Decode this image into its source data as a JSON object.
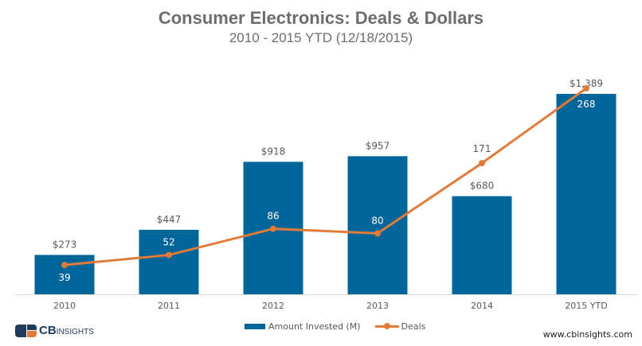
{
  "chart_data": {
    "type": "bar",
    "title": "Consumer Electronics: Deals & Dollars",
    "subtitle": "2010 - 2015 YTD (12/18/2015)",
    "categories": [
      "2010",
      "2011",
      "2012",
      "2013",
      "2014",
      "2015 YTD"
    ],
    "series": [
      {
        "name": "Amount Invested (M)",
        "type": "bar",
        "color": "#006699",
        "values": [
          273,
          447,
          918,
          957,
          680,
          1389
        ],
        "labels": [
          "$273",
          "$447",
          "$918",
          "$957",
          "$680",
          "$1,389"
        ]
      },
      {
        "name": "Deals",
        "type": "line",
        "color": "#e07b39",
        "values": [
          39,
          52,
          86,
          80,
          171,
          268
        ],
        "labels": [
          "39",
          "52",
          "86",
          "80",
          "171",
          "268"
        ]
      }
    ],
    "xlabel": "",
    "ylabel": "",
    "grid": false,
    "legend": "bottom-center"
  },
  "legend": {
    "bar_label": "Amount Invested (M)",
    "line_label": "Deals"
  },
  "footer": {
    "logo_cb": "CB",
    "logo_insights": "INSIGHTS",
    "url": "www.cbinsights.com"
  }
}
